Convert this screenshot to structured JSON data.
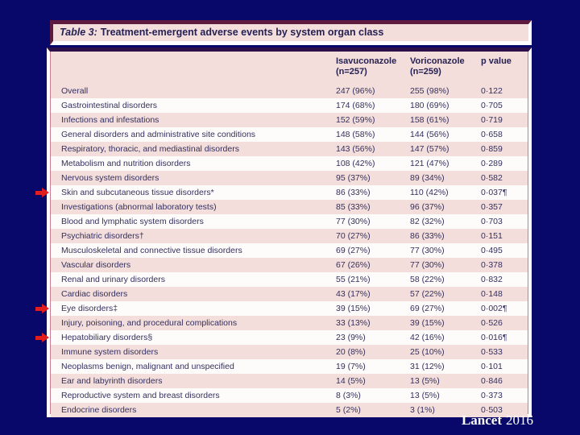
{
  "colors": {
    "background_navy": "#08086b",
    "row_pink": "#f3dedc",
    "row_white": "#fefcfb",
    "title_maroon_border": "#5e1b3f",
    "table_top_rule": "#2e1048",
    "inner_border_crimson": "#c97b93",
    "text_dark": "#262153",
    "arrow_red": "#e11d1d"
  },
  "table": {
    "title_prefix": "Table 3:",
    "title_rest": "Treatment-emergent adverse events by system organ class",
    "headers": [
      {
        "label": "Isavuconazole",
        "sub": "(n=257)"
      },
      {
        "label": "Voriconazole",
        "sub": "(n=259)"
      },
      {
        "label": "p value",
        "sub": ""
      }
    ],
    "rows": [
      {
        "label": "Overall",
        "isavuconazole": "247 (96%)",
        "voriconazole": "255 (98%)",
        "p": "0·122",
        "arrow": false
      },
      {
        "label": "Gastrointestinal disorders",
        "isavuconazole": "174 (68%)",
        "voriconazole": "180 (69%)",
        "p": "0·705",
        "arrow": false
      },
      {
        "label": "Infections and infestations",
        "isavuconazole": "152 (59%)",
        "voriconazole": "158 (61%)",
        "p": "0·719",
        "arrow": false
      },
      {
        "label": "General disorders and administrative site conditions",
        "isavuconazole": "148 (58%)",
        "voriconazole": "144 (56%)",
        "p": "0·658",
        "arrow": false
      },
      {
        "label": "Respiratory, thoracic, and mediastinal disorders",
        "isavuconazole": "143 (56%)",
        "voriconazole": "147 (57%)",
        "p": "0·859",
        "arrow": false
      },
      {
        "label": "Metabolism and nutrition disorders",
        "isavuconazole": "108 (42%)",
        "voriconazole": "121 (47%)",
        "p": "0·289",
        "arrow": false
      },
      {
        "label": "Nervous system disorders",
        "isavuconazole": "95 (37%)",
        "voriconazole": "89 (34%)",
        "p": "0·582",
        "arrow": false
      },
      {
        "label": "Skin and subcutaneous tissue disorders*",
        "isavuconazole": "86 (33%)",
        "voriconazole": "110 (42%)",
        "p": "0·037¶",
        "arrow": true
      },
      {
        "label": "Investigations (abnormal laboratory tests)",
        "isavuconazole": "85 (33%)",
        "voriconazole": "96 (37%)",
        "p": "0·357",
        "arrow": false
      },
      {
        "label": "Blood and lymphatic system disorders",
        "isavuconazole": "77 (30%)",
        "voriconazole": "82 (32%)",
        "p": "0·703",
        "arrow": false
      },
      {
        "label": "Psychiatric disorders†",
        "isavuconazole": "70 (27%)",
        "voriconazole": "86 (33%)",
        "p": "0·151",
        "arrow": false
      },
      {
        "label": "Musculoskeletal and connective tissue disorders",
        "isavuconazole": "69 (27%)",
        "voriconazole": "77 (30%)",
        "p": "0·495",
        "arrow": false
      },
      {
        "label": "Vascular disorders",
        "isavuconazole": "67 (26%)",
        "voriconazole": "77 (30%)",
        "p": "0·378",
        "arrow": false
      },
      {
        "label": "Renal and urinary disorders",
        "isavuconazole": "55 (21%)",
        "voriconazole": "58 (22%)",
        "p": "0·832",
        "arrow": false
      },
      {
        "label": "Cardiac disorders",
        "isavuconazole": "43 (17%)",
        "voriconazole": "57 (22%)",
        "p": "0·148",
        "arrow": false
      },
      {
        "label": "Eye disorders‡",
        "isavuconazole": "39 (15%)",
        "voriconazole": "69 (27%)",
        "p": "0·002¶",
        "arrow": true
      },
      {
        "label": "Injury, poisoning, and procedural complications",
        "isavuconazole": "33 (13%)",
        "voriconazole": "39 (15%)",
        "p": "0·526",
        "arrow": false
      },
      {
        "label": "Hepatobiliary disorders§",
        "isavuconazole": "23 (9%)",
        "voriconazole": "42 (16%)",
        "p": "0·016¶",
        "arrow": true
      },
      {
        "label": "Immune system disorders",
        "isavuconazole": "20 (8%)",
        "voriconazole": "25 (10%)",
        "p": "0·533",
        "arrow": false
      },
      {
        "label": "Neoplasms benign, malignant and unspecified",
        "isavuconazole": "19 (7%)",
        "voriconazole": "31 (12%)",
        "p": "0·101",
        "arrow": false
      },
      {
        "label": "Ear and labyrinth disorders",
        "isavuconazole": "14 (5%)",
        "voriconazole": "13 (5%)",
        "p": "0·846",
        "arrow": false
      },
      {
        "label": "Reproductive system and breast disorders",
        "isavuconazole": "8 (3%)",
        "voriconazole": "13 (5%)",
        "p": "0·373",
        "arrow": false
      },
      {
        "label": "Endocrine disorders",
        "isavuconazole": "5 (2%)",
        "voriconazole": "3 (1%)",
        "p": "0·503",
        "arrow": false
      }
    ]
  },
  "footer": {
    "journal": "Lancet",
    "year": "2016"
  }
}
